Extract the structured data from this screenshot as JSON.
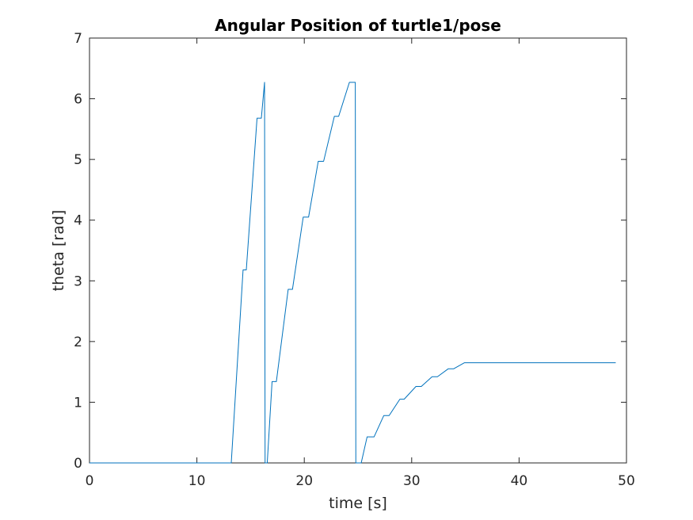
{
  "chart_data": {
    "type": "line",
    "title": "Angular Position of turtle1/pose",
    "xlabel": "time [s]",
    "ylabel": "theta [rad]",
    "xlim": [
      0,
      50
    ],
    "ylim": [
      0,
      7
    ],
    "xticks": [
      0,
      10,
      20,
      30,
      40,
      50
    ],
    "yticks": [
      0,
      1,
      2,
      3,
      4,
      5,
      6,
      7
    ],
    "grid": false,
    "box": true,
    "series": [
      {
        "color": "#0072bd",
        "x": [
          0,
          13.2,
          14.3,
          14.6,
          15.6,
          16.0,
          16.3,
          16.35,
          16.4,
          16.55,
          17.0,
          17.4,
          18.5,
          18.9,
          19.9,
          20.4,
          21.3,
          21.8,
          22.8,
          23.2,
          24.2,
          24.7,
          24.75,
          24.8,
          25.3,
          25.85,
          26.5,
          27.4,
          27.9,
          28.9,
          29.3,
          30.4,
          30.9,
          31.9,
          32.4,
          33.4,
          33.9,
          34.9,
          35.5,
          49.0
        ],
        "y": [
          0,
          0,
          3.18,
          3.18,
          5.68,
          5.68,
          6.27,
          0.0,
          0.0,
          0.0,
          1.34,
          1.34,
          2.86,
          2.86,
          4.05,
          4.05,
          4.97,
          4.97,
          5.71,
          5.71,
          6.27,
          6.27,
          6.27,
          0.0,
          0.0,
          0.43,
          0.43,
          0.78,
          0.78,
          1.05,
          1.05,
          1.26,
          1.26,
          1.42,
          1.42,
          1.55,
          1.55,
          1.65,
          1.65,
          1.65
        ]
      }
    ]
  }
}
